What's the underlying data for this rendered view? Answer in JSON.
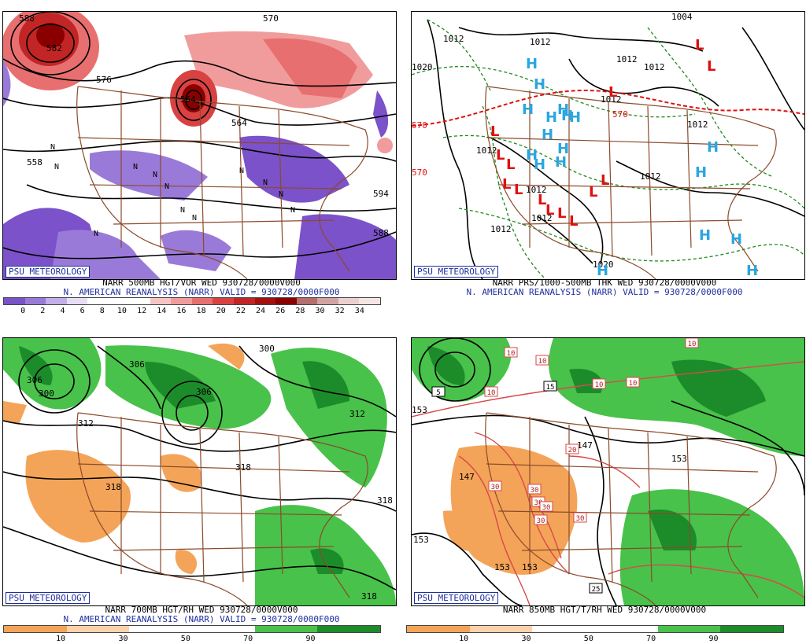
{
  "psu_label": "PSU METEOROLOGY",
  "panels": [
    {
      "id": "vor500",
      "caption1": "NARR 500MB HGT/VOR WED 930728/0000V000",
      "caption2": "N. AMERICAN REANALYSIS (NARR) VALID = 930728/0000F000",
      "scale_ticks": [
        "0",
        "2",
        "4",
        "6",
        "8",
        "10",
        "12",
        "14",
        "16",
        "18",
        "20",
        "22",
        "24",
        "26",
        "28",
        "30",
        "32",
        "34"
      ],
      "scale_colors": [
        "#7b52c9",
        "#9a7ad8",
        "#c2aee9",
        "#e7def5",
        "#ffffff",
        "#ffffff",
        "#ffffff",
        "#f7c4c4",
        "#f19c9c",
        "#e86f6f",
        "#d94242",
        "#c22525",
        "#a40f0f",
        "#8a0000",
        "#b56d6d",
        "#d2a3a3",
        "#ecd0d0",
        "#f6e5e5"
      ],
      "contour_labels": [
        "588",
        "582",
        "576",
        "570",
        "564",
        "564",
        "558",
        "594",
        "588"
      ],
      "vort_marks": [
        "N",
        "N",
        "N",
        "N",
        "N",
        "N",
        "N",
        "N",
        "N",
        "N",
        "N",
        "N"
      ]
    },
    {
      "id": "prs_thk",
      "caption1": "NARR PRS/1000-500MB THK WED 930728/0000V000",
      "caption2": "N. AMERICAN REANALYSIS (NARR) VALID = 930728/0000F000",
      "isobar_labels": [
        "1004",
        "1012",
        "1012",
        "1012",
        "1012",
        "1012",
        "1020",
        "1012",
        "1012",
        "1012",
        "1012",
        "1012",
        "1020",
        "1012"
      ],
      "thickness_labels": [
        "570",
        "570",
        "570"
      ],
      "high_count": 18,
      "low_count": 14,
      "high_symbol": "H",
      "low_symbol": "L"
    },
    {
      "id": "rh700",
      "caption1": "NARR 700MB HGT/RH WED 930728/0000V000",
      "caption2": "N. AMERICAN REANALYSIS (NARR) VALID = 930728/0000F000",
      "scale_ticks": [
        "10",
        "30",
        "50",
        "70",
        "90"
      ],
      "scale_colors": [
        "#f4a458",
        "#fbd2ab",
        "#ffffff",
        "#ffffff",
        "#48c24a",
        "#1c8c2a"
      ],
      "contour_labels": [
        "300",
        "306",
        "306",
        "300",
        "312",
        "306",
        "312",
        "318",
        "318",
        "318",
        "318"
      ]
    },
    {
      "id": "t850",
      "caption1": "NARR 850MB HGT/T/RH WED 930728/0000V000",
      "caption2": "",
      "scale_ticks": [
        "10",
        "30",
        "50",
        "70",
        "90"
      ],
      "scale_colors": [
        "#f4a458",
        "#fbd2ab",
        "#ffffff",
        "#ffffff",
        "#48c24a",
        "#1c8c2a"
      ],
      "contour_labels": [
        "153",
        "147",
        "153",
        "153",
        "147",
        "153",
        "153"
      ],
      "temp_boxes": [
        "10",
        "10",
        "10",
        "10",
        "10",
        "10",
        "15",
        "20",
        "30",
        "30",
        "30",
        "30",
        "30",
        "30",
        "25",
        "5"
      ]
    }
  ]
}
